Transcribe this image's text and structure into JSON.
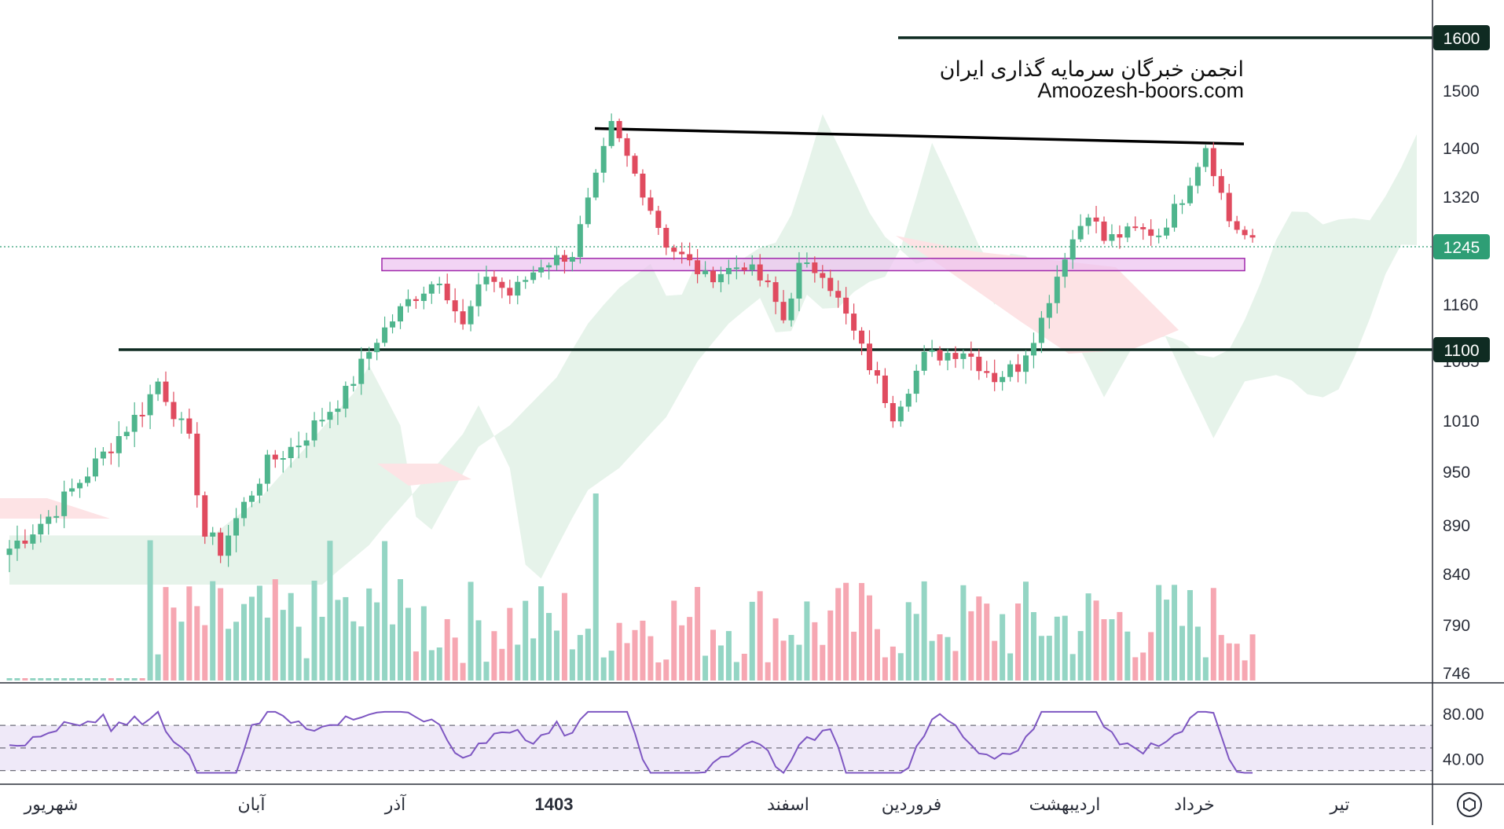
{
  "chart_data": {
    "type": "candlestick",
    "watermark": {
      "line1": "انجمن خبرگان سرمایه گذاری ایران",
      "line2": "Amoozesh-boors.com"
    },
    "price_axis": {
      "range": [
        746,
        1650
      ],
      "ticks": [
        1500,
        1400,
        1320,
        1160,
        1085,
        1010,
        950,
        890,
        840,
        790,
        746
      ],
      "tick_labels": [
        "1500",
        "1400",
        "1320",
        "1160",
        "1085",
        "1010",
        "950",
        "890",
        "840",
        "790",
        "746"
      ]
    },
    "price_levels": [
      {
        "value": 1600,
        "label": "1600"
      },
      {
        "value": 1100,
        "label": "1100"
      }
    ],
    "current_price": {
      "value": 1245,
      "label": "1245"
    },
    "trendline": {
      "from": {
        "bar": 0,
        "price": 1435
      },
      "to": {
        "bar": 1,
        "price": 1408
      }
    },
    "support_zone": {
      "from": 1210,
      "to": 1228
    },
    "time_axis": {
      "labels": [
        "شهریور",
        "آبان",
        "آذر",
        "1403",
        "اسفند",
        "فروردین",
        "اردیبهشت",
        "خرداد",
        "تیر"
      ],
      "bold_label": "1403"
    },
    "rsi": {
      "range": [
        20,
        100
      ],
      "ticks": [
        80,
        40
      ],
      "tick_labels": [
        "80.00",
        "40.00"
      ],
      "band": [
        70,
        30
      ],
      "mid": 50
    },
    "colors": {
      "up": "#4fb58d",
      "down": "#e04b5f",
      "up_volume": "#94d5c4",
      "down_volume": "#f6a7b2",
      "cloud_up": "#e6f3ea",
      "cloud_down": "#fde3e5",
      "zone_fill": "#ecc2ef",
      "zone_stroke": "#a02aac",
      "level_line": "#0f2b22",
      "rsi_line": "#7e57c2",
      "rsi_band": "#efe9f8"
    }
  }
}
